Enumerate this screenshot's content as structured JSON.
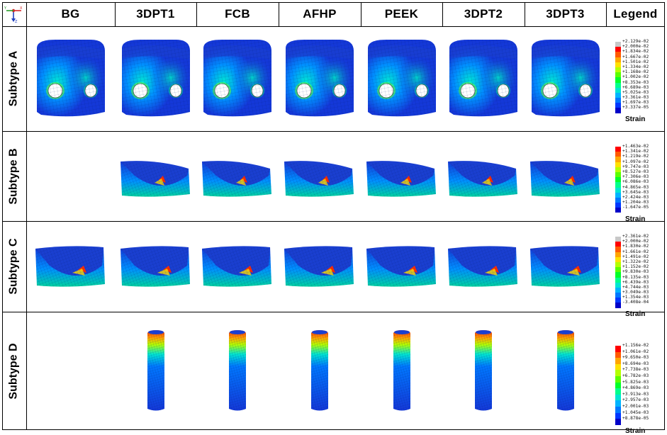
{
  "header": {
    "columns": [
      "BG",
      "3DPT1",
      "FCB",
      "AFHP",
      "PEEK",
      "3DPT2",
      "3DPT3",
      "Legend"
    ]
  },
  "axes_triad": {
    "labels": [
      "Y",
      "X",
      "Z"
    ],
    "colors": [
      "#2ca02c",
      "#d62728",
      "#1f3fbf"
    ]
  },
  "rows": [
    {
      "label": "Subtype A",
      "shape": "holes",
      "present": [
        true,
        true,
        true,
        true,
        true,
        true,
        true
      ],
      "legend": {
        "title": "Strain",
        "colors": [
          "#c8c8c8",
          "#ff0000",
          "#ff5a00",
          "#ffa500",
          "#ffe100",
          "#b4ff00",
          "#5aff00",
          "#00ff2a",
          "#00ff8c",
          "#00e6d2",
          "#00b4ff",
          "#0078ff",
          "#0037ff",
          "#0000c8"
        ],
        "values": [
          "+2.129e-02",
          "+2.000e-02",
          "+1.834e-02",
          "+1.667e-02",
          "+1.501e-02",
          "+1.334e-02",
          "+1.168e-02",
          "+1.002e-02",
          "+8.353e-03",
          "+6.689e-03",
          "+5.025e-03",
          "+3.361e-03",
          "+1.697e-03",
          "+3.337e-05"
        ]
      }
    },
    {
      "label": "Subtype B",
      "shape": "wedge",
      "present": [
        false,
        true,
        true,
        true,
        true,
        true,
        true
      ],
      "legend": {
        "title": "Strain",
        "colors": [
          "#ff0000",
          "#ff5a00",
          "#ffa500",
          "#ffe100",
          "#b4ff00",
          "#5aff00",
          "#00ff2a",
          "#00ff8c",
          "#00e6d2",
          "#00b4ff",
          "#0078ff",
          "#0037ff",
          "#0000c8"
        ],
        "values": [
          "+1.463e-02",
          "+1.341e-02",
          "+1.219e-02",
          "+1.097e-02",
          "+9.747e-03",
          "+8.527e-03",
          "+7.306e-03",
          "+6.086e-03",
          "+4.865e-03",
          "+3.645e-03",
          "+2.424e-03",
          "+1.204e-03",
          "-1.647e-05"
        ]
      }
    },
    {
      "label": "Subtype C",
      "shape": "wedge",
      "present": [
        true,
        true,
        true,
        true,
        true,
        true,
        true
      ],
      "legend": {
        "title": "Strain",
        "colors": [
          "#c8c8c8",
          "#ff0000",
          "#ff5a00",
          "#ffa500",
          "#ffe100",
          "#b4ff00",
          "#5aff00",
          "#00ff2a",
          "#00ff8c",
          "#00e6d2",
          "#00b4ff",
          "#0078ff",
          "#0037ff",
          "#0000c8"
        ],
        "values": [
          "+2.361e-02",
          "+2.000e-02",
          "+1.830e-02",
          "+1.661e-02",
          "+1.491e-02",
          "+1.322e-02",
          "+1.152e-02",
          "+9.830e-03",
          "+8.135e-03",
          "+6.439e-03",
          "+4.744e-03",
          "+3.049e-03",
          "+1.354e-03",
          "-3.408e-04"
        ]
      }
    },
    {
      "label": "Subtype D",
      "shape": "rod",
      "present": [
        false,
        true,
        true,
        true,
        true,
        true,
        true
      ],
      "legend": {
        "title": "Strain",
        "colors": [
          "#ff0000",
          "#ff5a00",
          "#ffa500",
          "#ffe100",
          "#b4ff00",
          "#5aff00",
          "#00ff2a",
          "#00ff8c",
          "#00e6d2",
          "#00b4ff",
          "#0078ff",
          "#0037ff",
          "#0000c8"
        ],
        "values": [
          "+1.156e-02",
          "+1.061e-02",
          "+9.650e-03",
          "+8.694e-03",
          "+7.738e-03",
          "+6.782e-03",
          "+5.825e-03",
          "+4.869e-03",
          "+3.913e-03",
          "+2.957e-03",
          "+2.001e-03",
          "+1.045e-03",
          "+8.878e-05"
        ]
      }
    }
  ]
}
